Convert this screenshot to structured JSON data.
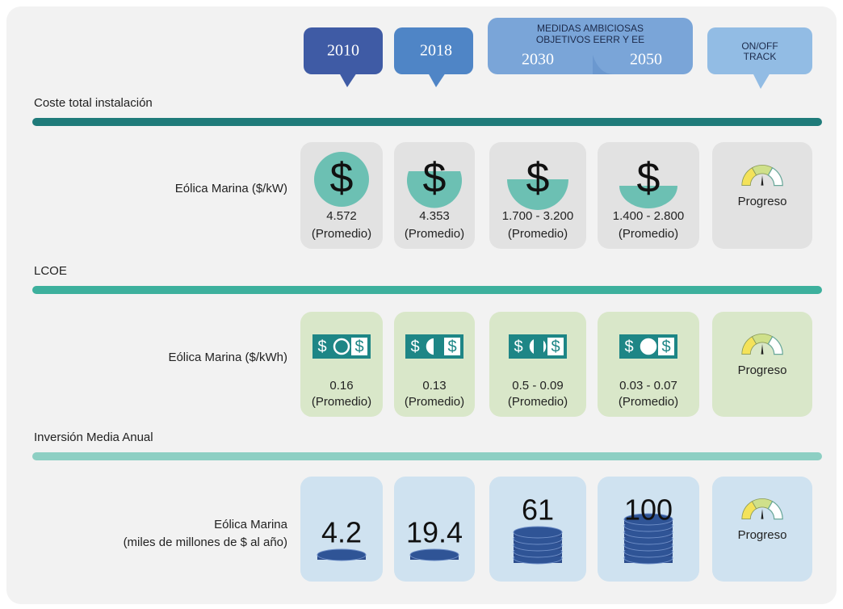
{
  "header": {
    "years": [
      "2010",
      "2018"
    ],
    "ambitious": {
      "lines": [
        "MEDIDAS AMBICIOSAS",
        "OBJETIVOS EERR Y EE"
      ],
      "years": [
        "2030",
        "2050"
      ]
    },
    "track": [
      "ON/OFF",
      "TRACK"
    ]
  },
  "currency_symbol": "$",
  "sections": [
    {
      "title": "Coste total instalación",
      "label": [
        "Eólica Marina ($/kW)"
      ],
      "cells": [
        {
          "value": "4.572",
          "note": "(Promedio)"
        },
        {
          "value": "4.353",
          "note": "(Promedio)"
        },
        {
          "value": "1.700 - 3.200",
          "note": "(Promedio)"
        },
        {
          "value": "1.400 - 2.800",
          "note": "(Promedio)"
        }
      ],
      "progress": "Progreso"
    },
    {
      "title": "LCOE",
      "label": [
        "Eólica Marina ($/kWh)"
      ],
      "cells": [
        {
          "value": "0.16",
          "note": "(Promedio)"
        },
        {
          "value": "0.13",
          "note": "(Promedio)"
        },
        {
          "value": "0.5 - 0.09",
          "note": "(Promedio)"
        },
        {
          "value": "0.03 - 0.07",
          "note": "(Promedio)"
        }
      ],
      "progress": "Progreso"
    },
    {
      "title": "Inversión Media Anual",
      "label": [
        "Eólica Marina",
        "(miles de millones de $ al año)"
      ],
      "cells": [
        {
          "value": "4.2"
        },
        {
          "value": "19.4"
        },
        {
          "value": "61"
        },
        {
          "value": "100"
        }
      ],
      "progress": "Progreso"
    }
  ]
}
